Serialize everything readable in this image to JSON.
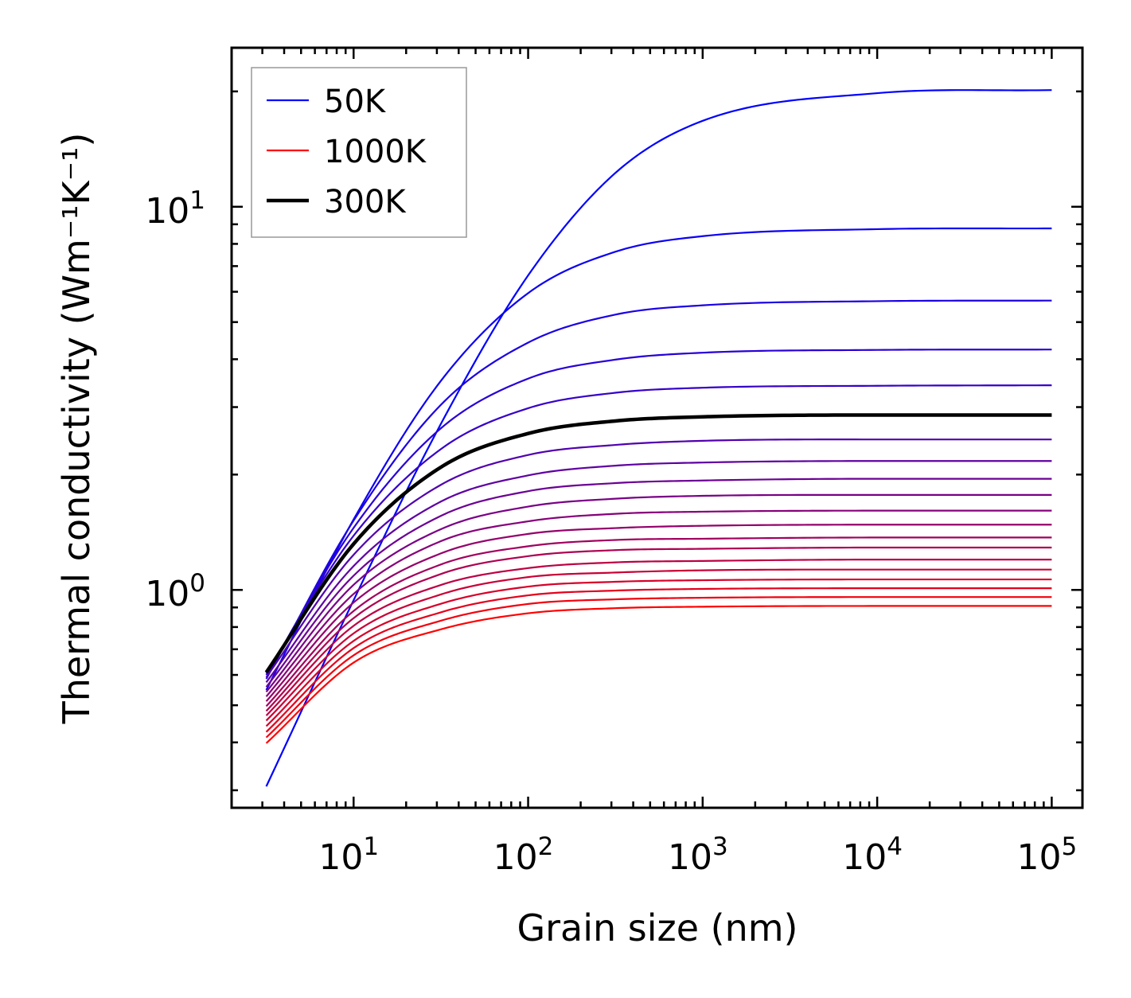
{
  "chart_data": {
    "type": "line",
    "title": "",
    "xlabel": "Grain size (nm)",
    "ylabel": "Thermal conductivity (Wm⁻¹K⁻¹)",
    "xscale": "log",
    "yscale": "log",
    "xlim": [
      2,
      150000
    ],
    "ylim": [
      0.27,
      26
    ],
    "grid": false,
    "legend_position": "top-left",
    "x_ticks": [
      {
        "base": "10",
        "exp": "1",
        "value": 10
      },
      {
        "base": "10",
        "exp": "2",
        "value": 100
      },
      {
        "base": "10",
        "exp": "3",
        "value": 1000
      },
      {
        "base": "10",
        "exp": "4",
        "value": 10000
      },
      {
        "base": "10",
        "exp": "5",
        "value": 100000
      }
    ],
    "y_ticks": [
      {
        "base": "10",
        "exp": "0",
        "value": 1
      },
      {
        "base": "10",
        "exp": "1",
        "value": 10
      }
    ],
    "legend": [
      {
        "label": "50K",
        "color": "#0000ff",
        "series_index": 0
      },
      {
        "label": "1000K",
        "color": "#ff0000",
        "series_index": 19
      },
      {
        "label": "300K",
        "color": "#000000",
        "series_index": 5
      }
    ],
    "x": [
      3.16,
      10,
      31.6,
      100,
      316,
      1000,
      10000,
      100000
    ],
    "series": [
      {
        "name": "50K",
        "color": "#0000ff",
        "values": [
          0.307,
          0.94,
          2.71,
          6.62,
          12.25,
          16.76,
          19.79,
          20.16
        ]
      },
      {
        "name": "series-2",
        "color": "#0d00f2",
        "values": [
          0.548,
          1.527,
          3.51,
          5.95,
          7.63,
          8.38,
          8.74,
          8.78
        ]
      },
      {
        "name": "series-3",
        "color": "#1b00e4",
        "values": [
          0.586,
          1.517,
          3.04,
          4.42,
          5.23,
          5.53,
          5.67,
          5.69
        ]
      },
      {
        "name": "series-4",
        "color": "#2800d7",
        "values": [
          0.6,
          1.452,
          2.64,
          3.56,
          3.99,
          4.16,
          4.23,
          4.24
        ]
      },
      {
        "name": "series-5",
        "color": "#3600c9",
        "values": [
          0.606,
          1.385,
          2.33,
          2.98,
          3.27,
          3.37,
          3.41,
          3.42
        ]
      },
      {
        "name": "300K",
        "color": "#000000",
        "values": [
          0.609,
          1.318,
          2.09,
          2.56,
          2.76,
          2.83,
          2.86,
          2.86
        ]
      },
      {
        "name": "series-7",
        "color": "#5100ae",
        "values": [
          0.592,
          1.235,
          1.88,
          2.25,
          2.39,
          2.45,
          2.47,
          2.47
        ]
      },
      {
        "name": "series-8",
        "color": "#5e00a1",
        "values": [
          0.574,
          1.154,
          1.7,
          1.99,
          2.11,
          2.15,
          2.17,
          2.17
        ]
      },
      {
        "name": "series-9",
        "color": "#6b0094",
        "values": [
          0.558,
          1.089,
          1.56,
          1.81,
          1.9,
          1.93,
          1.95,
          1.95
        ]
      },
      {
        "name": "series-10",
        "color": "#790086",
        "values": [
          0.542,
          1.031,
          1.44,
          1.65,
          1.73,
          1.76,
          1.77,
          1.77
        ]
      },
      {
        "name": "series-11",
        "color": "#860079",
        "values": [
          0.527,
          0.976,
          1.34,
          1.51,
          1.58,
          1.6,
          1.61,
          1.61
        ]
      },
      {
        "name": "series-12",
        "color": "#94006b",
        "values": [
          0.512,
          0.927,
          1.245,
          1.4,
          1.45,
          1.47,
          1.48,
          1.48
        ]
      },
      {
        "name": "series-13",
        "color": "#a1005e",
        "values": [
          0.497,
          0.881,
          1.165,
          1.3,
          1.35,
          1.36,
          1.37,
          1.37
        ]
      },
      {
        "name": "series-14",
        "color": "#ae0051",
        "values": [
          0.483,
          0.844,
          1.1,
          1.225,
          1.27,
          1.28,
          1.29,
          1.29
        ]
      },
      {
        "name": "series-15",
        "color": "#bc0043",
        "values": [
          0.47,
          0.806,
          1.03,
          1.14,
          1.18,
          1.19,
          1.2,
          1.2
        ]
      },
      {
        "name": "series-16",
        "color": "#c90036",
        "values": [
          0.456,
          0.77,
          0.973,
          1.08,
          1.11,
          1.125,
          1.13,
          1.13
        ]
      },
      {
        "name": "series-17",
        "color": "#d70028",
        "values": [
          0.441,
          0.736,
          0.92,
          1.02,
          1.05,
          1.06,
          1.065,
          1.065
        ]
      },
      {
        "name": "series-18",
        "color": "#e4001b",
        "values": [
          0.426,
          0.705,
          0.874,
          0.968,
          0.996,
          1.006,
          1.01,
          1.01
        ]
      },
      {
        "name": "series-19",
        "color": "#f2000d",
        "values": [
          0.412,
          0.675,
          0.831,
          0.919,
          0.945,
          0.954,
          0.958,
          0.958
        ]
      },
      {
        "name": "1000K",
        "color": "#ff0000",
        "values": [
          0.398,
          0.646,
          0.789,
          0.869,
          0.896,
          0.904,
          0.908,
          0.908
        ]
      }
    ]
  }
}
